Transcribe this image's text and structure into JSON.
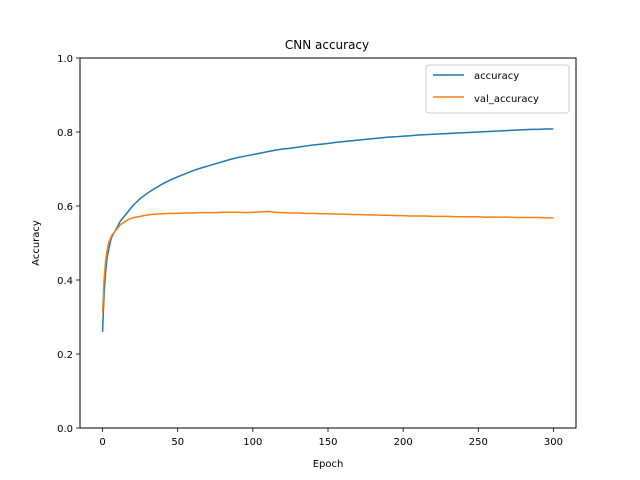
{
  "chart_data": {
    "type": "line",
    "title": "CNN accuracy",
    "xlabel": "Epoch",
    "ylabel": "Accuracy",
    "xlim": [
      -15,
      315
    ],
    "ylim": [
      0,
      1.0
    ],
    "xticks": [
      0,
      50,
      100,
      150,
      200,
      250,
      300
    ],
    "yticks": [
      0.0,
      0.2,
      0.4,
      0.6,
      0.8,
      1.0
    ],
    "ytick_labels": [
      "0.0",
      "0.2",
      "0.4",
      "0.6",
      "0.8",
      "1.0"
    ],
    "legend_position": "upper right",
    "grid": false,
    "series": [
      {
        "name": "accuracy",
        "color": "#1f77b4",
        "x": [
          0,
          1,
          2,
          3,
          4,
          5,
          6,
          8,
          10,
          12,
          15,
          18,
          20,
          25,
          30,
          35,
          40,
          45,
          50,
          55,
          60,
          65,
          70,
          75,
          80,
          85,
          90,
          95,
          100,
          105,
          110,
          115,
          120,
          125,
          130,
          135,
          140,
          145,
          150,
          155,
          160,
          165,
          170,
          175,
          180,
          185,
          190,
          195,
          200,
          205,
          210,
          215,
          220,
          225,
          230,
          235,
          240,
          245,
          250,
          255,
          260,
          265,
          270,
          275,
          280,
          285,
          290,
          295,
          300
        ],
        "y": [
          0.26,
          0.36,
          0.42,
          0.46,
          0.48,
          0.5,
          0.515,
          0.53,
          0.545,
          0.56,
          0.575,
          0.59,
          0.6,
          0.62,
          0.635,
          0.648,
          0.66,
          0.67,
          0.679,
          0.687,
          0.695,
          0.702,
          0.708,
          0.714,
          0.72,
          0.726,
          0.731,
          0.735,
          0.739,
          0.743,
          0.747,
          0.751,
          0.754,
          0.756,
          0.759,
          0.762,
          0.765,
          0.767,
          0.769,
          0.772,
          0.774,
          0.776,
          0.778,
          0.78,
          0.782,
          0.784,
          0.786,
          0.787,
          0.789,
          0.79,
          0.792,
          0.793,
          0.794,
          0.795,
          0.796,
          0.797,
          0.798,
          0.799,
          0.8,
          0.801,
          0.802,
          0.803,
          0.804,
          0.805,
          0.806,
          0.807,
          0.807,
          0.808,
          0.808
        ]
      },
      {
        "name": "val_accuracy",
        "color": "#ff7f0e",
        "x": [
          0,
          1,
          2,
          3,
          4,
          5,
          6,
          8,
          10,
          12,
          15,
          18,
          20,
          25,
          30,
          35,
          40,
          45,
          50,
          55,
          60,
          65,
          70,
          75,
          80,
          85,
          90,
          95,
          100,
          105,
          110,
          115,
          120,
          125,
          130,
          135,
          140,
          145,
          150,
          155,
          160,
          165,
          170,
          175,
          180,
          185,
          190,
          195,
          200,
          205,
          210,
          215,
          220,
          225,
          230,
          235,
          240,
          245,
          250,
          255,
          260,
          265,
          270,
          275,
          280,
          285,
          290,
          295,
          300
        ],
        "y": [
          0.31,
          0.4,
          0.45,
          0.48,
          0.5,
          0.51,
          0.52,
          0.53,
          0.54,
          0.55,
          0.558,
          0.565,
          0.568,
          0.572,
          0.576,
          0.578,
          0.579,
          0.58,
          0.58,
          0.581,
          0.581,
          0.582,
          0.582,
          0.582,
          0.583,
          0.583,
          0.583,
          0.582,
          0.583,
          0.584,
          0.585,
          0.583,
          0.582,
          0.581,
          0.581,
          0.58,
          0.58,
          0.579,
          0.579,
          0.578,
          0.578,
          0.577,
          0.577,
          0.576,
          0.576,
          0.575,
          0.575,
          0.574,
          0.574,
          0.573,
          0.573,
          0.573,
          0.572,
          0.572,
          0.572,
          0.571,
          0.571,
          0.571,
          0.571,
          0.57,
          0.57,
          0.57,
          0.57,
          0.569,
          0.569,
          0.569,
          0.569,
          0.568,
          0.568
        ]
      }
    ]
  }
}
